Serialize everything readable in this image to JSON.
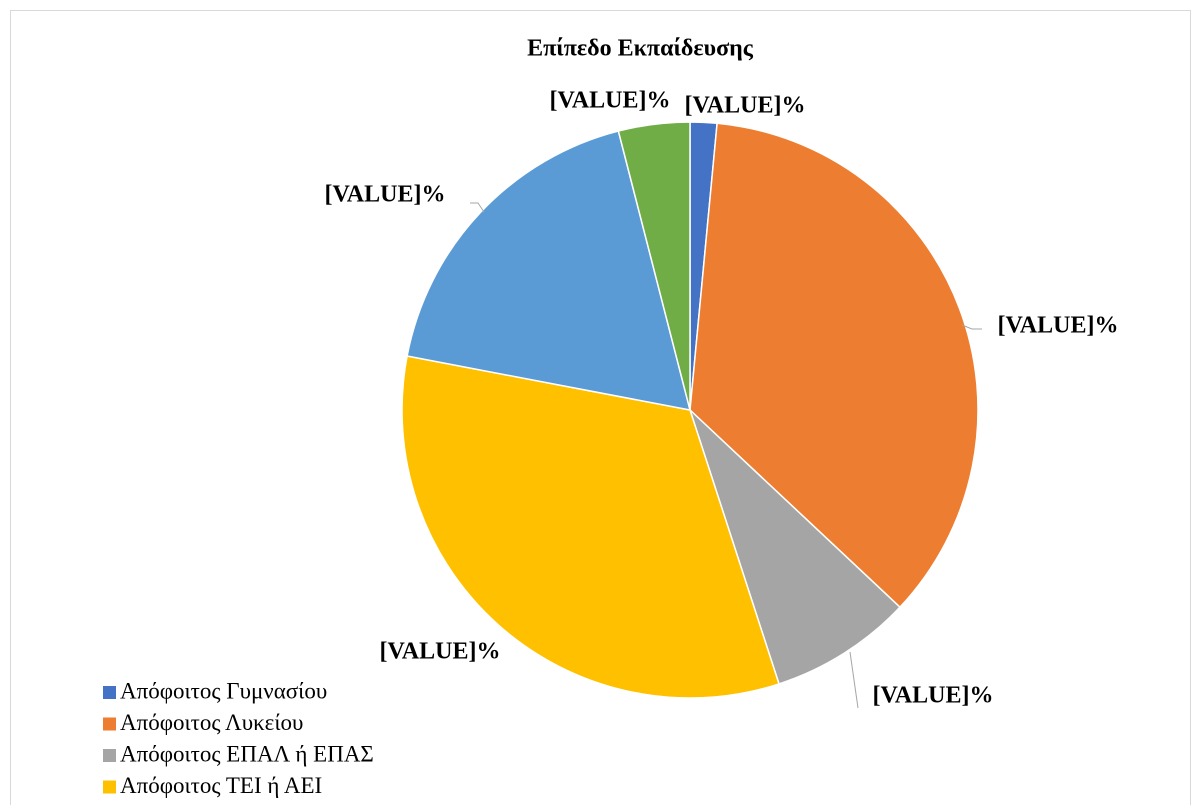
{
  "chart_data": {
    "type": "pie",
    "title": "Επίπεδο Εκπαίδευσης",
    "categories": [
      "Απόφοιτος Γυμνασίου",
      "Απόφοιτος Λυκείου",
      "Απόφοιτος ΕΠΑΛ ή ΕΠΑΣ",
      "Απόφοιτος ΤΕΙ ή ΑΕΙ",
      null,
      null
    ],
    "values": [
      1.5,
      35.5,
      8,
      33,
      18,
      4
    ],
    "value_labels": [
      "[VALUE]%",
      "[VALUE]%",
      "[VALUE]%",
      "[VALUE]%",
      "[VALUE]%",
      "[VALUE]%"
    ],
    "colors": [
      "#4472c4",
      "#ed7d31",
      "#a5a5a5",
      "#ffc000",
      "#5b9bd5",
      "#70ad47"
    ]
  }
}
